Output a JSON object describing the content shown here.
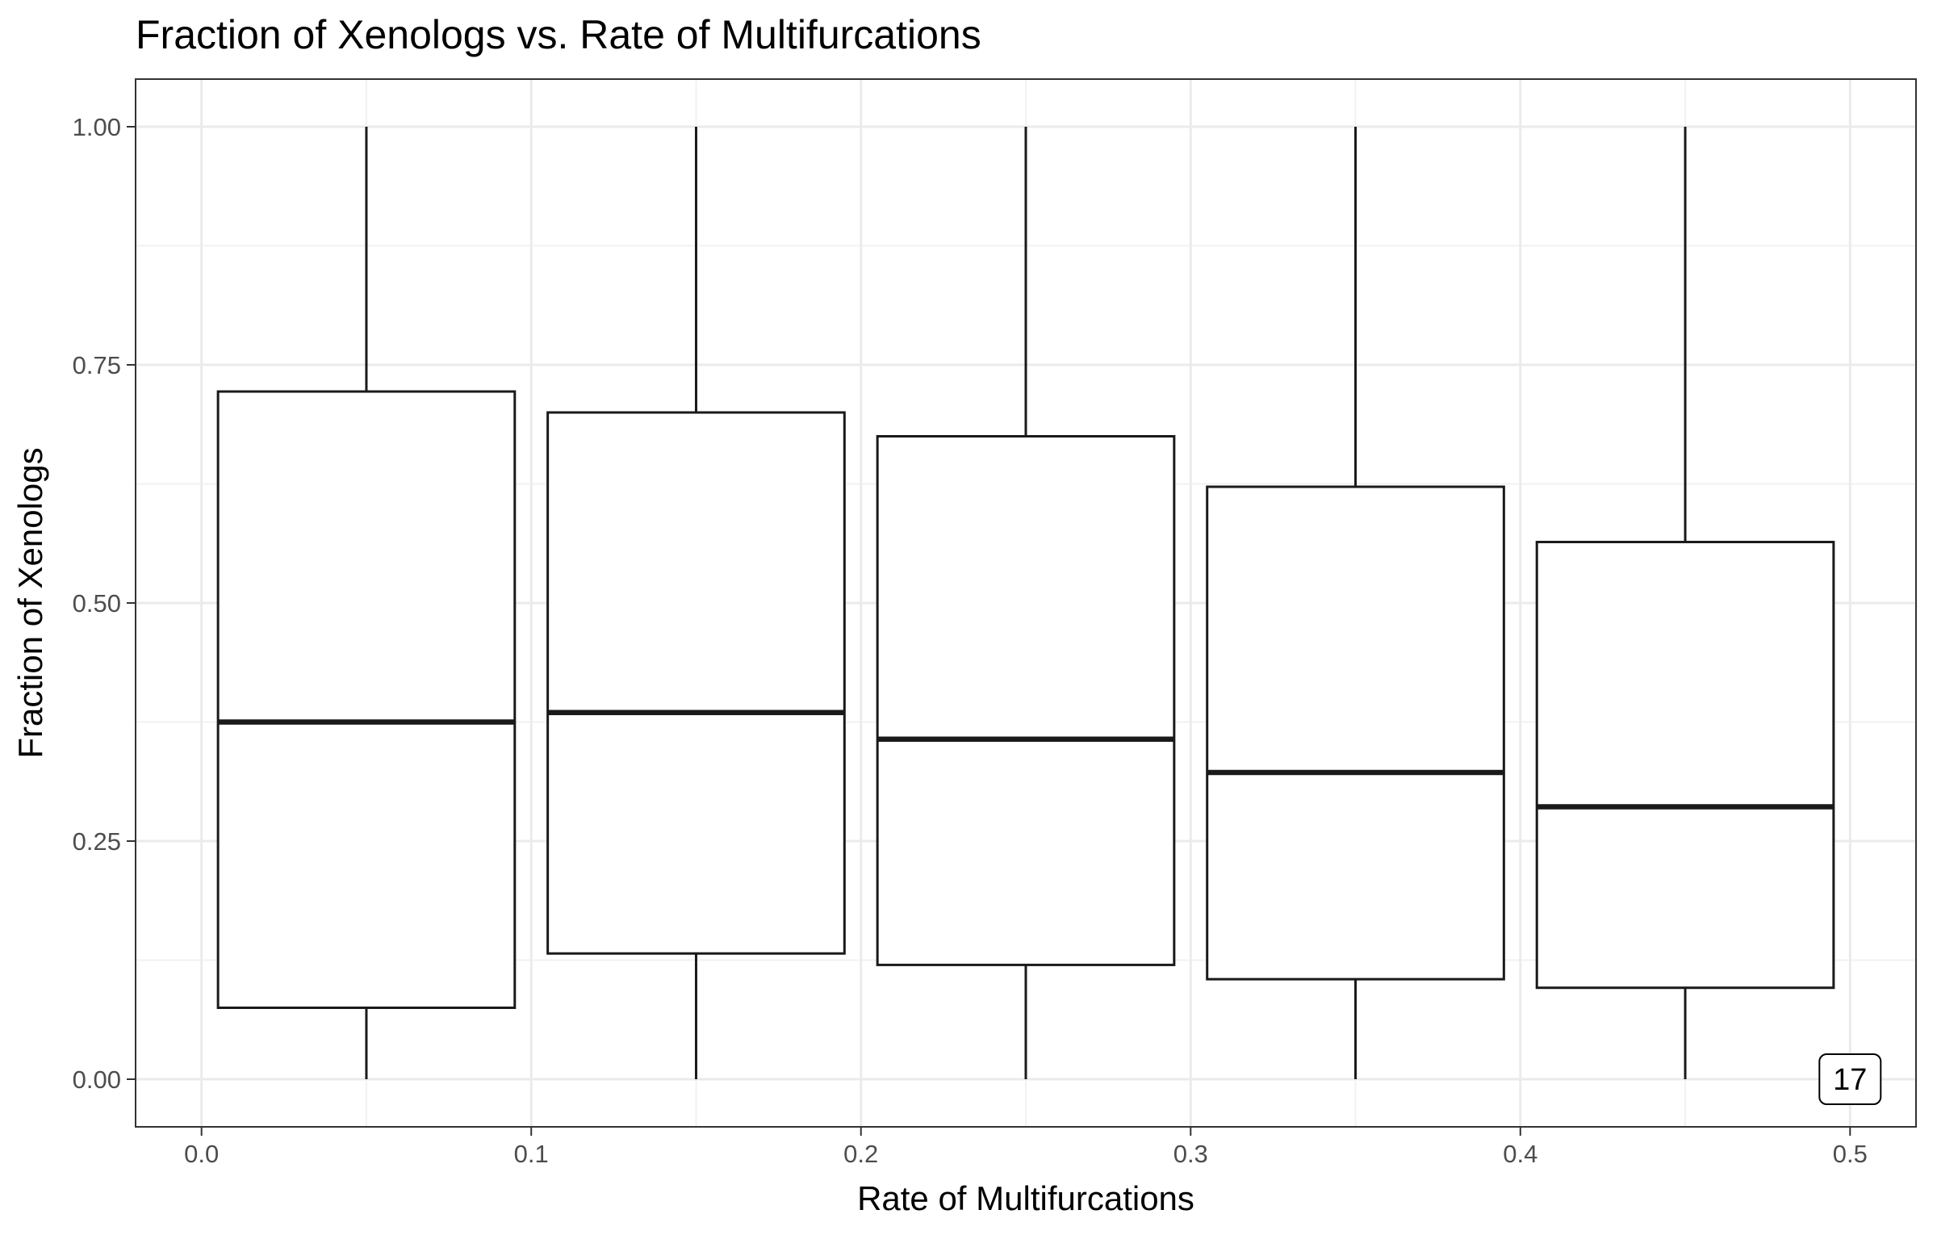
{
  "chart_data": {
    "type": "boxplot",
    "title": "Fraction of Xenologs vs. Rate of Multifurcations",
    "xlabel": "Rate of Multifurcations",
    "ylabel": "Fraction of Xenologs",
    "xlim": [
      -0.02,
      0.52
    ],
    "ylim": [
      -0.05,
      1.05
    ],
    "x_ticks": [
      0.0,
      0.1,
      0.2,
      0.3,
      0.4,
      0.5
    ],
    "x_tick_labels": [
      "0.0",
      "0.1",
      "0.2",
      "0.3",
      "0.4",
      "0.5"
    ],
    "y_ticks": [
      0.0,
      0.25,
      0.5,
      0.75,
      1.0
    ],
    "y_tick_labels": [
      "0.00",
      "0.25",
      "0.50",
      "0.75",
      "1.00"
    ],
    "box_width": 0.09,
    "boxes": [
      {
        "x": 0.05,
        "min": 0.0,
        "q1": 0.075,
        "median": 0.375,
        "q3": 0.722,
        "max": 1.0
      },
      {
        "x": 0.15,
        "min": 0.0,
        "q1": 0.132,
        "median": 0.385,
        "q3": 0.7,
        "max": 1.0
      },
      {
        "x": 0.25,
        "min": 0.0,
        "q1": 0.12,
        "median": 0.357,
        "q3": 0.675,
        "max": 1.0
      },
      {
        "x": 0.35,
        "min": 0.0,
        "q1": 0.105,
        "median": 0.322,
        "q3": 0.622,
        "max": 1.0
      },
      {
        "x": 0.45,
        "min": 0.0,
        "q1": 0.096,
        "median": 0.286,
        "q3": 0.564,
        "max": 1.0
      }
    ],
    "grid": true,
    "annotation": {
      "text": "17",
      "x": 0.5,
      "y": 0.0
    },
    "colors": {
      "box_stroke": "#1a1a1a",
      "box_fill": "#ffffff",
      "grid_major": "#ebebeb",
      "grid_minor": "#f2f2f2",
      "panel_border": "#333333",
      "tick_text": "#4d4d4d"
    }
  }
}
